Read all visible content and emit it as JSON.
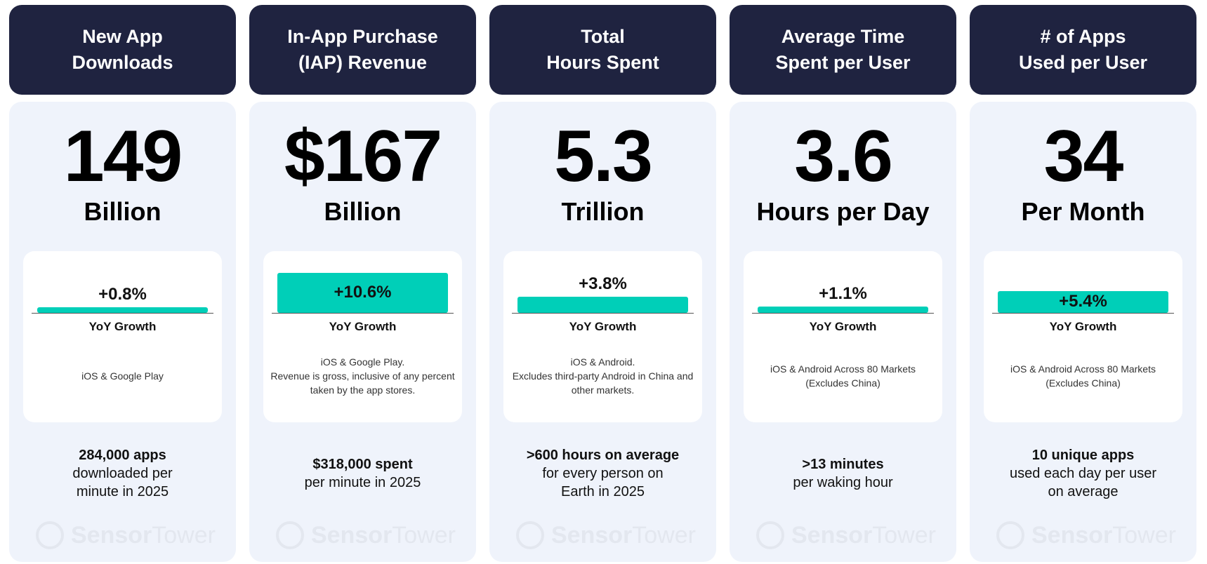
{
  "accent_color": "#00cfb8",
  "header_color": "#1f2340",
  "logo": {
    "part1": "Sensor",
    "part2": "Tower"
  },
  "cards": [
    {
      "title": "New App\nDownloads",
      "value": "149",
      "unit": "Billion",
      "growth": "+0.8%",
      "growth_value": 0.8,
      "growth_label": "YoY Growth",
      "description": "iOS & Google Play",
      "footer_bold": "284,000 apps",
      "footer_text": "downloaded per\nminute in 2025"
    },
    {
      "title": "In-App Purchase\n(IAP) Revenue",
      "value": "$167",
      "unit": "Billion",
      "growth": "+10.6%",
      "growth_value": 10.6,
      "growth_label": "YoY Growth",
      "description": "iOS & Google Play.\nRevenue is gross, inclusive of any percent taken by the app stores.",
      "footer_bold": "$318,000 spent",
      "footer_text": "per minute in 2025"
    },
    {
      "title": "Total\nHours Spent",
      "value": "5.3",
      "unit": "Trillion",
      "growth": "+3.8%",
      "growth_value": 3.8,
      "growth_label": "YoY Growth",
      "description": "iOS & Android.\nExcludes third-party Android in China and other markets.",
      "footer_bold": ">600 hours on average",
      "footer_text": "for every person on\nEarth in 2025"
    },
    {
      "title": "Average Time\nSpent per User",
      "value": "3.6",
      "unit": "Hours per Day",
      "growth": "+1.1%",
      "growth_value": 1.1,
      "growth_label": "YoY Growth",
      "description": "iOS & Android Across 80 Markets\n(Excludes China)",
      "footer_bold": ">13 minutes",
      "footer_text": "per waking hour"
    },
    {
      "title": "# of Apps\nUsed per User",
      "value": "34",
      "unit": "Per Month",
      "growth": "+5.4%",
      "growth_value": 5.4,
      "growth_label": "YoY Growth",
      "description": "iOS & Android Across 80 Markets\n(Excludes China)",
      "footer_bold": "10 unique apps",
      "footer_text": "used each day per user\non average"
    }
  ]
}
